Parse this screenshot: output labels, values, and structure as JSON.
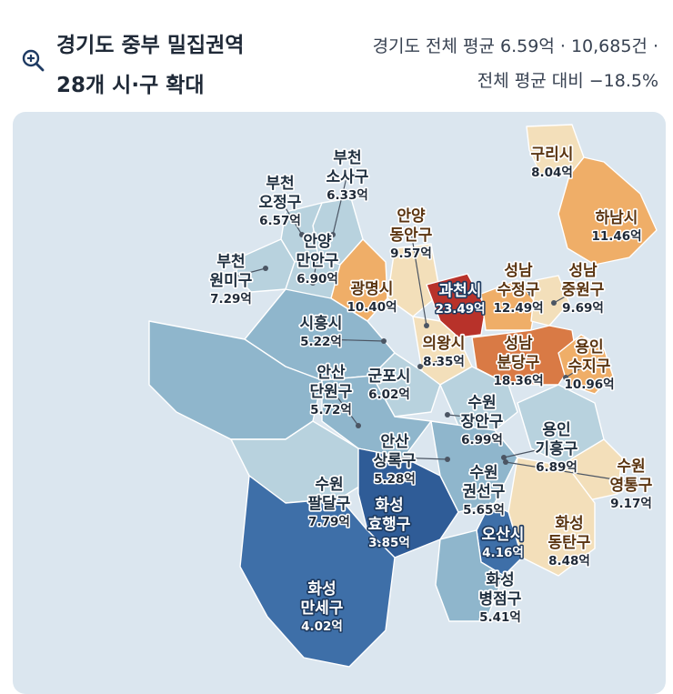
{
  "header": {
    "title_line1": "경기도 중부 밀집권역",
    "title_line2": "28개 시·구 확대",
    "stat_line1": "경기도 전체 평균 6.59억 · 10,685건 ·",
    "stat_line2": "전체 평균 대비 −18.5%",
    "icon": "zoom-in-icon"
  },
  "colors": {
    "background": "#dbe6ef",
    "low": "#2f5c97",
    "mid_low": "#8fb6cc",
    "mid": "#f3dfba",
    "high": "#efae68",
    "very_high": "#b8322a"
  },
  "regions": [
    {
      "name": "구리시",
      "value": "8.04억",
      "value_num": 8.04
    },
    {
      "name": "하남시",
      "value": "11.46억",
      "value_num": 11.46
    },
    {
      "name": "부천 소사구",
      "value": "6.33억",
      "value_num": 6.33
    },
    {
      "name": "부천 오정구",
      "value": "6.57억",
      "value_num": 6.57
    },
    {
      "name": "부천 원미구",
      "value": "7.29억",
      "value_num": 7.29
    },
    {
      "name": "안양 만안구",
      "value": "6.90억",
      "value_num": 6.9
    },
    {
      "name": "안양 동안구",
      "value": "9.57억",
      "value_num": 9.57
    },
    {
      "name": "광명시",
      "value": "10.40억",
      "value_num": 10.4
    },
    {
      "name": "과천시",
      "value": "23.49억",
      "value_num": 23.49
    },
    {
      "name": "성남 수정구",
      "value": "12.49억",
      "value_num": 12.49
    },
    {
      "name": "성남 중원구",
      "value": "9.69억",
      "value_num": 9.69
    },
    {
      "name": "시흥시",
      "value": "5.22억",
      "value_num": 5.22
    },
    {
      "name": "의왕시",
      "value": "8.35억",
      "value_num": 8.35
    },
    {
      "name": "성남 분당구",
      "value": "18.36억",
      "value_num": 18.36
    },
    {
      "name": "용인 수지구",
      "value": "10.96억",
      "value_num": 10.96
    },
    {
      "name": "안산 단원구",
      "value": "5.72억",
      "value_num": 5.72
    },
    {
      "name": "군포시",
      "value": "6.02억",
      "value_num": 6.02
    },
    {
      "name": "수원 장안구",
      "value": "6.99억",
      "value_num": 6.99
    },
    {
      "name": "용인 기흥구",
      "value": "6.89억",
      "value_num": 6.89
    },
    {
      "name": "안산 상록구",
      "value": "5.28억",
      "value_num": 5.28
    },
    {
      "name": "수원 영통구",
      "value": "9.17억",
      "value_num": 9.17
    },
    {
      "name": "수원 팔달구",
      "value": "7.79억",
      "value_num": 7.79
    },
    {
      "name": "수원 권선구",
      "value": "5.65억",
      "value_num": 5.65
    },
    {
      "name": "화성 효행구",
      "value": "3.85억",
      "value_num": 3.85
    },
    {
      "name": "화성 동탄구",
      "value": "8.48억",
      "value_num": 8.48
    },
    {
      "name": "오산시",
      "value": "4.16억",
      "value_num": 4.16
    },
    {
      "name": "화성 병점구",
      "value": "5.41억",
      "value_num": 5.41
    },
    {
      "name": "화성 만세구",
      "value": "4.02억",
      "value_num": 4.02
    }
  ]
}
